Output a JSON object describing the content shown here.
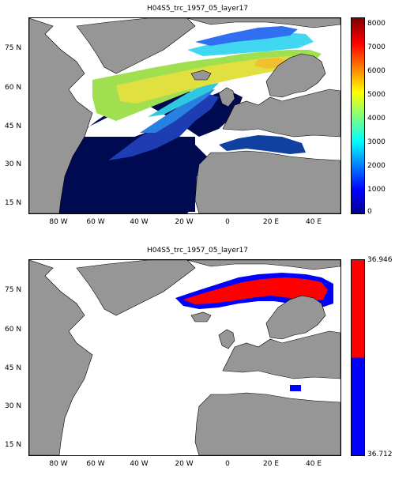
{
  "top_panel": {
    "title": "H04S5_trc_1957_05_layer17",
    "colorbar_ticks": [
      "8000",
      "7000",
      "6000",
      "5000",
      "4000",
      "3000",
      "2000",
      "1000",
      "0"
    ],
    "colormap": "jet",
    "colorbar_range": [
      0,
      8000
    ]
  },
  "bottom_panel": {
    "title": "H04S5_trc_1957_05_layer17",
    "colorbar_ticks": [
      "36.946",
      "36.712"
    ],
    "colors": {
      "high": "#ff0000",
      "low": "#0000ff"
    },
    "colorbar_range": [
      36.712,
      36.946
    ]
  },
  "axes": {
    "latitude_labels": [
      "75 N",
      "60 N",
      "45 N",
      "30 N",
      "15 N"
    ],
    "longitude_labels": [
      "80 W",
      "60 W",
      "40 W",
      "20 W",
      "0",
      "20 E",
      "40 E"
    ]
  },
  "colors": {
    "land": "#969696",
    "ocean_deep": "#000a50",
    "no_data": "#ffffff"
  }
}
